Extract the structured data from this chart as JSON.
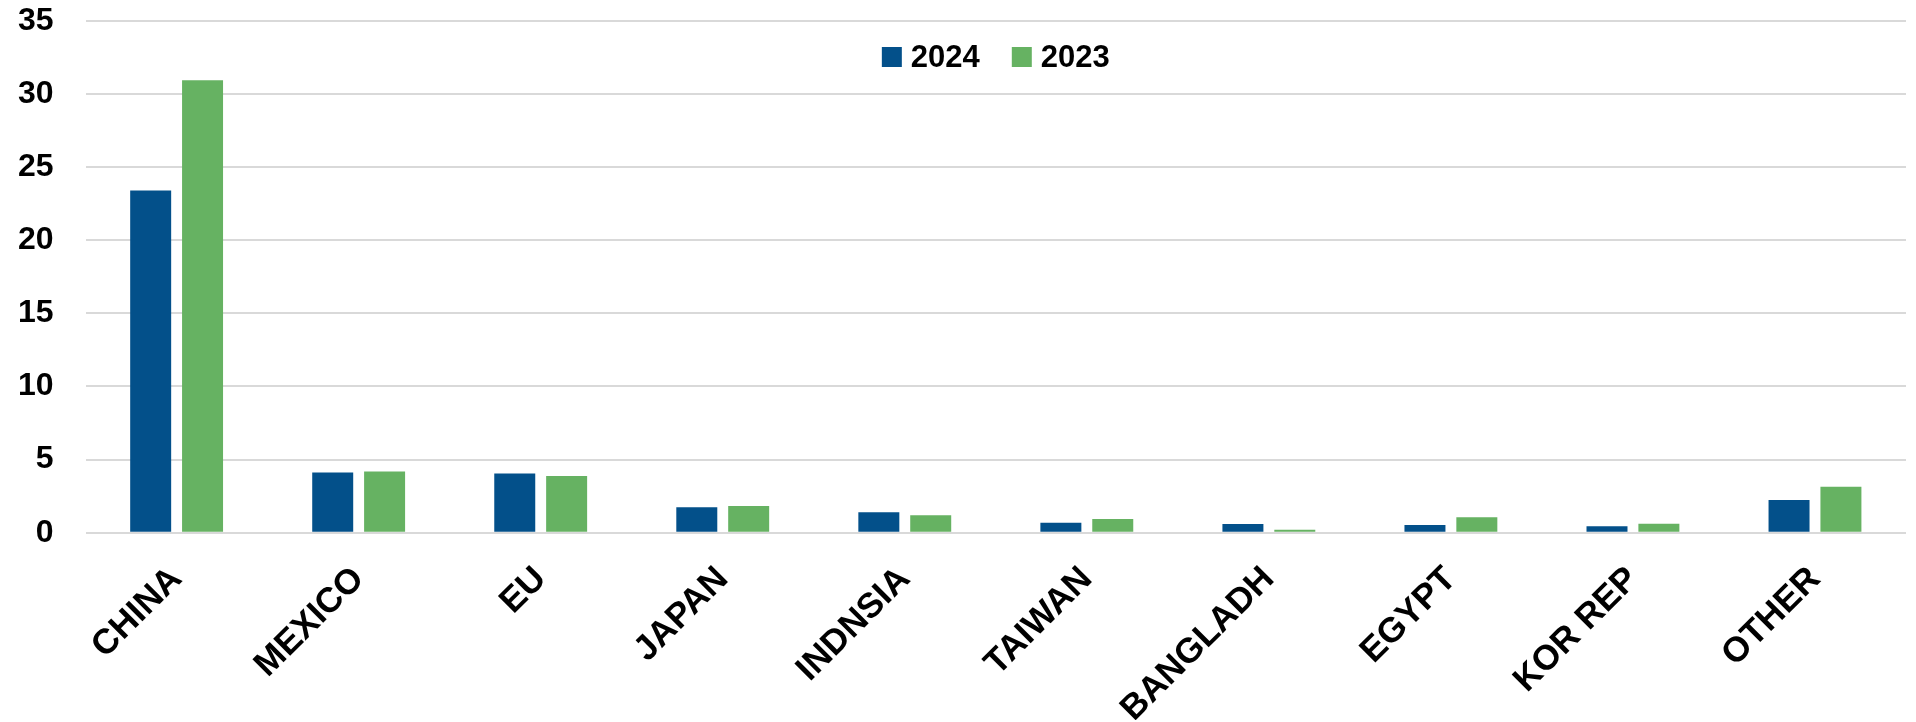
{
  "chart_data": {
    "type": "bar",
    "categories": [
      "CHINA",
      "MEXICO",
      "EU",
      "JAPAN",
      "INDNSIA",
      "TAIWAN",
      "BANGLADH",
      "EGYPT",
      "KOR REP",
      "OTHER"
    ],
    "series": [
      {
        "name": "2024",
        "color": "#03508a",
        "values": [
          23.4,
          4.11,
          4.05,
          1.74,
          1.4,
          0.68,
          0.6,
          0.53,
          0.44,
          2.23
        ]
      },
      {
        "name": "2023",
        "color": "#66b262",
        "values": [
          30.95,
          4.18,
          3.87,
          1.82,
          1.2,
          0.94,
          0.2,
          1.06,
          0.62,
          3.14
        ]
      }
    ],
    "ylim": [
      0,
      35
    ],
    "yticks": [
      0,
      5,
      10,
      15,
      20,
      25,
      30,
      35
    ],
    "grid": "y",
    "legend": "top"
  }
}
